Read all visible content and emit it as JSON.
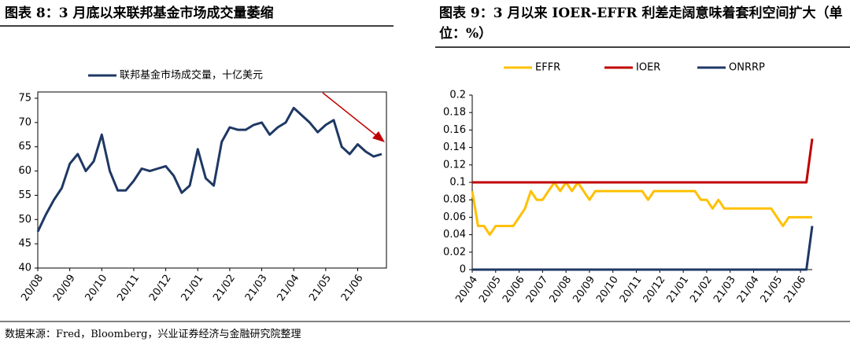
{
  "chart_data": [
    {
      "type": "line",
      "title": "图表 8：3 月底以来联邦基金市场成交量萎缩",
      "frame": "box",
      "legend": "top",
      "categories": [
        "20/08",
        null,
        null,
        null,
        "20/09",
        null,
        null,
        null,
        "20/10",
        null,
        null,
        null,
        "20/11",
        null,
        null,
        null,
        "20/12",
        null,
        null,
        null,
        "21/01",
        null,
        null,
        null,
        "21/02",
        null,
        null,
        null,
        "21/03",
        null,
        null,
        null,
        "21/04",
        null,
        null,
        null,
        "21/05",
        null,
        null,
        null,
        "21/06",
        null,
        null,
        null
      ],
      "series": [
        {
          "name": "联邦基金市场成交量，十亿美元",
          "color": "#1f3864",
          "values": [
            47.5,
            51,
            54,
            56.5,
            61.5,
            63.5,
            60,
            62,
            67.5,
            60,
            56,
            56,
            58,
            60.5,
            60,
            60.5,
            61,
            59,
            55.5,
            57,
            64.5,
            58.5,
            57,
            66,
            69,
            68.5,
            68.5,
            69.5,
            70,
            67.5,
            69,
            70,
            73,
            71.5,
            70,
            68,
            69.5,
            70.5,
            65,
            63.5,
            65.5,
            64,
            63,
            63.5
          ]
        }
      ],
      "ylim": [
        40,
        75
      ],
      "yticks": [
        40,
        45,
        50,
        55,
        60,
        65,
        70,
        75
      ]
    },
    {
      "type": "line",
      "title": "图表 9：3 月以来 IOER-EFFR 利差走阔意味着套利空间扩大（单位：%）",
      "frame": "axes",
      "legend": "top",
      "categories": [
        "20/04",
        null,
        null,
        null,
        "20/05",
        null,
        null,
        null,
        "20/06",
        null,
        null,
        null,
        "20/07",
        null,
        null,
        null,
        "20/08",
        null,
        null,
        null,
        "20/09",
        null,
        null,
        null,
        "20/10",
        null,
        null,
        null,
        "20/11",
        null,
        null,
        null,
        "20/12",
        null,
        null,
        null,
        "21/01",
        null,
        null,
        null,
        "21/02",
        null,
        null,
        null,
        "21/03",
        null,
        null,
        null,
        "21/04",
        null,
        null,
        null,
        "21/05",
        null,
        null,
        null,
        "21/06",
        null,
        null
      ],
      "series": [
        {
          "name": "EFFR",
          "color": "#ffc000",
          "values": [
            0.09,
            0.05,
            0.05,
            0.04,
            0.05,
            0.05,
            0.05,
            0.05,
            0.06,
            0.07,
            0.09,
            0.08,
            0.08,
            0.09,
            0.1,
            0.09,
            0.1,
            0.09,
            0.1,
            0.09,
            0.08,
            0.09,
            0.09,
            0.09,
            0.09,
            0.09,
            0.09,
            0.09,
            0.09,
            0.09,
            0.08,
            0.09,
            0.09,
            0.09,
            0.09,
            0.09,
            0.09,
            0.09,
            0.09,
            0.08,
            0.08,
            0.07,
            0.08,
            0.07,
            0.07,
            0.07,
            0.07,
            0.07,
            0.07,
            0.07,
            0.07,
            0.07,
            0.06,
            0.05,
            0.06,
            0.06,
            0.06,
            0.06,
            0.06
          ]
        },
        {
          "name": "IOER",
          "color": "#c00000",
          "values": [
            0.1,
            0.1,
            0.1,
            0.1,
            0.1,
            0.1,
            0.1,
            0.1,
            0.1,
            0.1,
            0.1,
            0.1,
            0.1,
            0.1,
            0.1,
            0.1,
            0.1,
            0.1,
            0.1,
            0.1,
            0.1,
            0.1,
            0.1,
            0.1,
            0.1,
            0.1,
            0.1,
            0.1,
            0.1,
            0.1,
            0.1,
            0.1,
            0.1,
            0.1,
            0.1,
            0.1,
            0.1,
            0.1,
            0.1,
            0.1,
            0.1,
            0.1,
            0.1,
            0.1,
            0.1,
            0.1,
            0.1,
            0.1,
            0.1,
            0.1,
            0.1,
            0.1,
            0.1,
            0.1,
            0.1,
            0.1,
            0.1,
            0.1,
            0.15
          ]
        },
        {
          "name": "ONRRP",
          "color": "#1f3864",
          "values": [
            0,
            0,
            0,
            0,
            0,
            0,
            0,
            0,
            0,
            0,
            0,
            0,
            0,
            0,
            0,
            0,
            0,
            0,
            0,
            0,
            0,
            0,
            0,
            0,
            0,
            0,
            0,
            0,
            0,
            0,
            0,
            0,
            0,
            0,
            0,
            0,
            0,
            0,
            0,
            0,
            0,
            0,
            0,
            0,
            0,
            0,
            0,
            0,
            0,
            0,
            0,
            0,
            0,
            0,
            0,
            0,
            0,
            0,
            0.05
          ]
        }
      ],
      "ylim": [
        0,
        0.2
      ],
      "yticks": [
        0,
        0.02,
        0.04,
        0.06,
        0.08,
        0.1,
        0.12,
        0.14,
        0.16,
        0.18,
        0.2
      ]
    }
  ],
  "footer": {
    "source": "数据来源：Fred，Bloomberg，兴业证券经济与金融研究院整理"
  }
}
